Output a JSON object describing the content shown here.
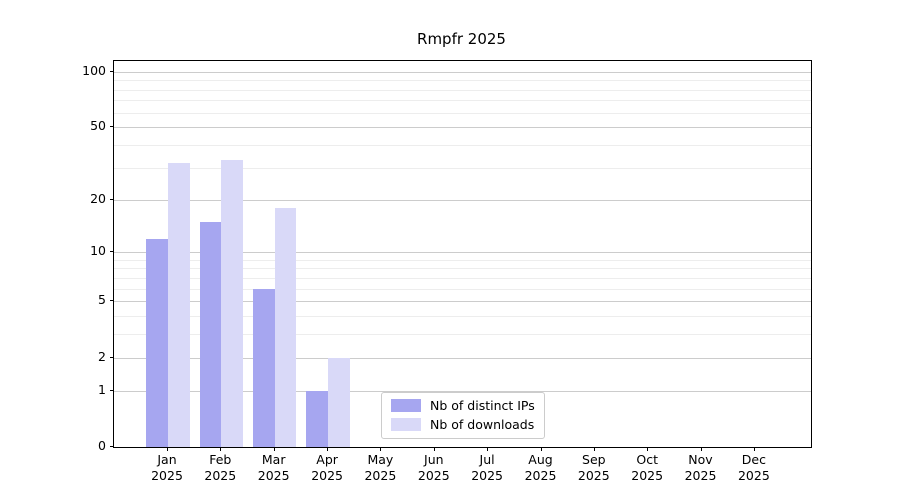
{
  "chart_data": {
    "type": "bar",
    "title": "Rmpfr 2025",
    "months": [
      "Jan",
      "Feb",
      "Mar",
      "Apr",
      "May",
      "Jun",
      "Jul",
      "Aug",
      "Sep",
      "Oct",
      "Nov",
      "Dec"
    ],
    "year": "2025",
    "series": [
      {
        "name": "Nb of distinct IPs",
        "color": "#a6a6f0",
        "values": [
          12,
          15,
          6,
          1,
          0,
          0,
          0,
          0,
          0,
          0,
          0,
          0
        ]
      },
      {
        "name": "Nb of downloads",
        "color": "#d9d9f8",
        "values": [
          32,
          33,
          18,
          2,
          0,
          0,
          0,
          0,
          0,
          0,
          0,
          0
        ]
      }
    ],
    "y_scale": "log1p",
    "ylim": [
      0,
      113
    ],
    "y_major_ticks": [
      0,
      1,
      2,
      5,
      10,
      20,
      50,
      100
    ],
    "y_minor_gridlines": [
      3,
      4,
      6,
      7,
      8,
      9,
      30,
      40,
      60,
      70,
      80,
      90
    ],
    "grid": "horizontal, major and minor, behind bars",
    "legend_position": "lower center"
  }
}
